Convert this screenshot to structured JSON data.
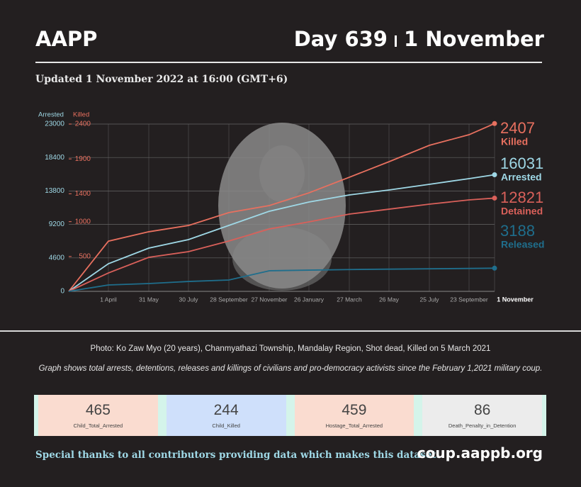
{
  "header": {
    "brand": "AAPP",
    "day": "Day 639",
    "date": "1 November",
    "updated": "Updated 1 November 2022 at 16:00 (GMT+6)"
  },
  "chart_data": {
    "type": "line",
    "y_label": "Arrested",
    "y2_label": "Killed",
    "categories": [
      null,
      "1 April",
      "31 May",
      "30 July",
      "28 September",
      "27 November",
      "26 January",
      "27 March",
      "26 May",
      "25 July",
      "23 September",
      "1 November"
    ],
    "ylim": [
      0,
      23000
    ],
    "yticks": [
      0,
      4600,
      9200,
      13800,
      18400,
      23000
    ],
    "y2lim": [
      0,
      2400
    ],
    "y2ticks": [
      500,
      1000,
      1400,
      1900,
      2400
    ],
    "grid": true,
    "series": [
      {
        "name": "Killed",
        "color": "#e8705f",
        "axis": "y2",
        "values": [
          0,
          720,
          855,
          945,
          1130,
          1230,
          1413,
          1637,
          1860,
          2095,
          2247,
          2407
        ]
      },
      {
        "name": "Arrested",
        "color": "#9fd8e6",
        "values": [
          0,
          3800,
          5945,
          7115,
          9060,
          11010,
          12280,
          13250,
          13940,
          14720,
          15500,
          16031
        ]
      },
      {
        "name": "Detained",
        "color": "#d9605a",
        "values": [
          0,
          2530,
          4680,
          5460,
          6920,
          8575,
          9550,
          10620,
          11300,
          11990,
          12570,
          12821
        ]
      },
      {
        "name": "Released",
        "color": "#1f6e8c",
        "values": [
          0,
          880,
          1070,
          1360,
          1560,
          2830,
          2920,
          3000,
          3050,
          3100,
          3150,
          3188
        ]
      }
    ]
  },
  "captions": {
    "photo": "Photo: Ko Zaw Myo (20 years), Chanmyathazi Township, Mandalay Region, Shot dead, Killed on 5 March 2021",
    "graph": "Graph shows total arrests, detentions, releases and killings of civilians and pro-democracy activists since the February 1,2021 military coup."
  },
  "stats": [
    {
      "value": 465,
      "label": "Child_Total_Arrested"
    },
    {
      "value": 244,
      "label": "Child_Killed"
    },
    {
      "value": 459,
      "label": "Hostage_Total_Arrested"
    },
    {
      "value": 86,
      "label": "Death_Penalty_in_Detention"
    }
  ],
  "footer": {
    "thanks": "Special thanks to all contributors providing data which makes this dataset.",
    "site": "coup.aappb.org"
  }
}
